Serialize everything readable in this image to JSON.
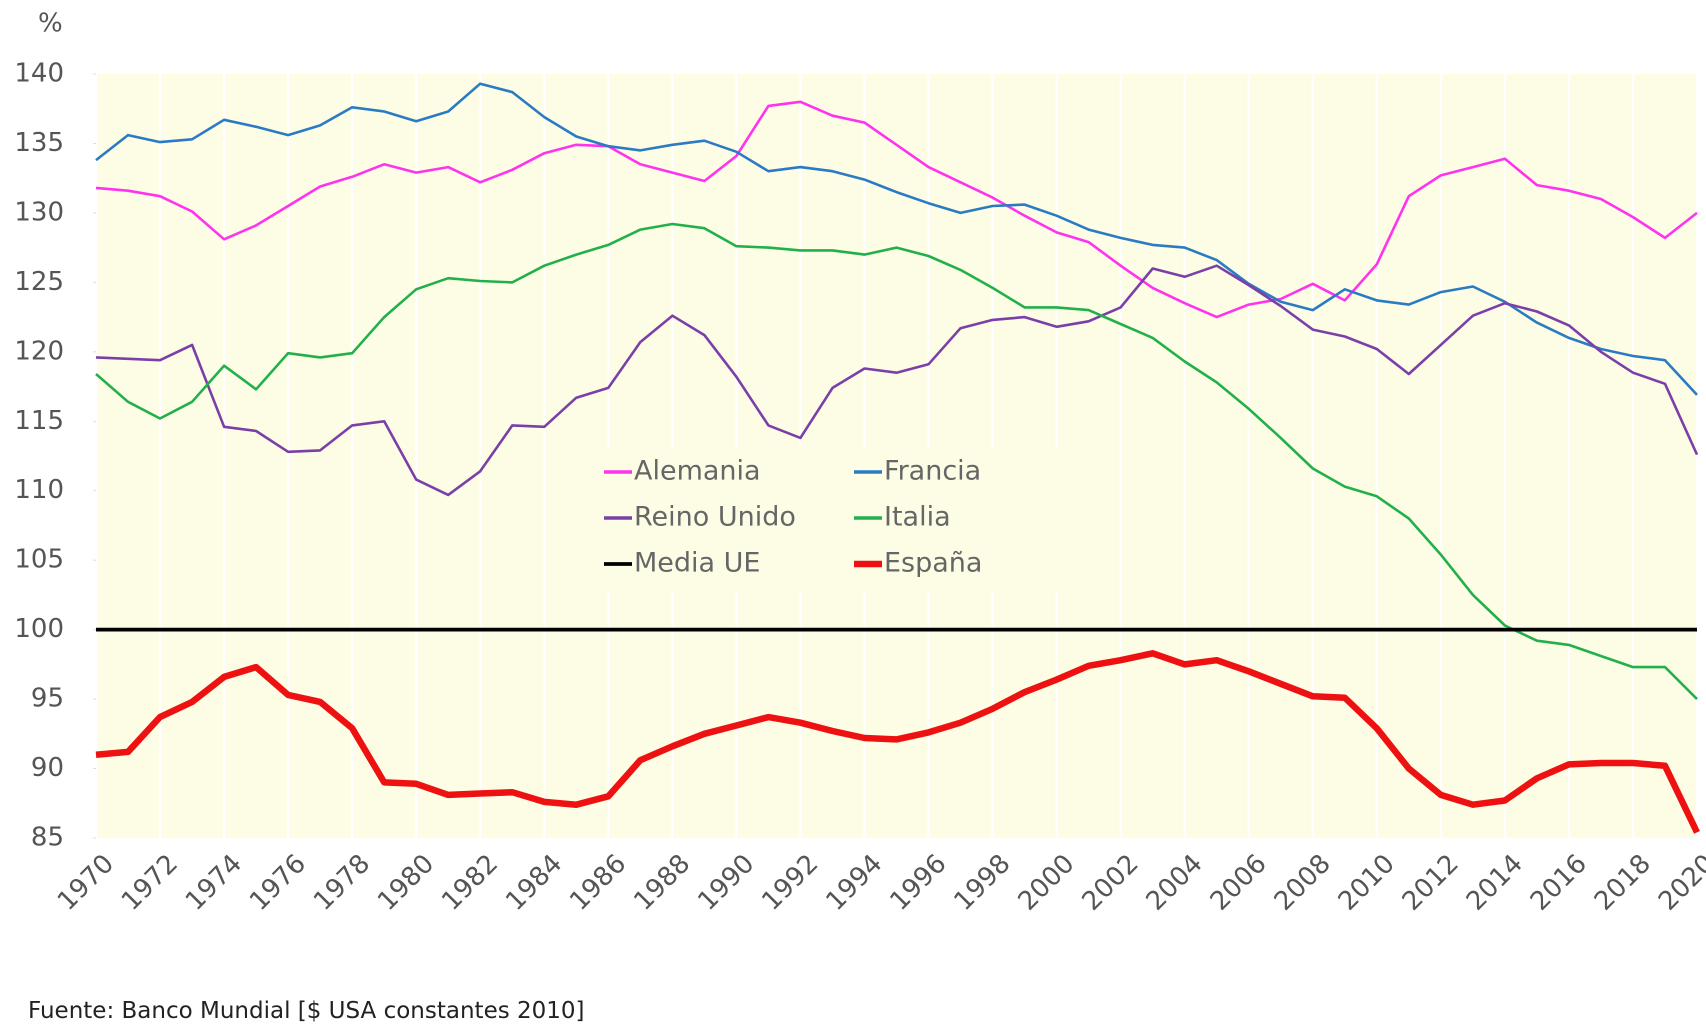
{
  "chart_data": {
    "type": "line",
    "y_label": "%",
    "source": "Fuente: Banco Mundial [$ USA constantes 2010]",
    "x": [
      1970,
      1971,
      1972,
      1973,
      1974,
      1975,
      1976,
      1977,
      1978,
      1979,
      1980,
      1981,
      1982,
      1983,
      1984,
      1985,
      1986,
      1987,
      1988,
      1989,
      1990,
      1991,
      1992,
      1993,
      1994,
      1995,
      1996,
      1997,
      1998,
      1999,
      2000,
      2001,
      2002,
      2003,
      2004,
      2005,
      2006,
      2007,
      2008,
      2009,
      2010,
      2011,
      2012,
      2013,
      2014,
      2015,
      2016,
      2017,
      2018,
      2019,
      2020
    ],
    "xlim": [
      1970,
      2020
    ],
    "xticks": [
      1970,
      1972,
      1974,
      1976,
      1978,
      1980,
      1982,
      1984,
      1986,
      1988,
      1990,
      1992,
      1994,
      1996,
      1998,
      2000,
      2002,
      2004,
      2006,
      2008,
      2010,
      2012,
      2014,
      2016,
      2018,
      2020
    ],
    "ylim": [
      85,
      140
    ],
    "yticks": [
      85,
      90,
      95,
      100,
      105,
      110,
      115,
      120,
      125,
      130,
      135,
      140
    ],
    "grid": true,
    "legend": "center",
    "series": [
      {
        "name": "Alemania",
        "color": "#ff33ee",
        "values": [
          131.8,
          131.6,
          131.2,
          130.1,
          128.1,
          129.1,
          130.5,
          131.9,
          132.6,
          133.5,
          132.9,
          133.3,
          132.2,
          133.1,
          134.3,
          134.9,
          134.8,
          133.5,
          132.9,
          132.3,
          134.1,
          137.7,
          138.0,
          137.0,
          136.5,
          134.9,
          133.3,
          132.2,
          131.1,
          129.8,
          128.6,
          127.9,
          126.2,
          124.6,
          123.5,
          122.5,
          123.4,
          123.8,
          124.9,
          123.7,
          126.3,
          131.2,
          132.7,
          133.3,
          133.9,
          132.0,
          131.6,
          131.0,
          129.7,
          128.2,
          130.0
        ]
      },
      {
        "name": "Francia",
        "color": "#2b7bc4",
        "values": [
          133.8,
          135.6,
          135.1,
          135.3,
          136.7,
          136.2,
          135.6,
          136.3,
          137.6,
          137.3,
          136.6,
          137.3,
          139.3,
          138.7,
          136.9,
          135.5,
          134.8,
          134.5,
          134.9,
          135.2,
          134.4,
          133.0,
          133.3,
          133.0,
          132.4,
          131.5,
          130.7,
          130.0,
          130.5,
          130.6,
          129.8,
          128.8,
          128.2,
          127.7,
          127.5,
          126.6,
          124.9,
          123.6,
          123.0,
          124.5,
          123.7,
          123.4,
          124.3,
          124.7,
          123.6,
          122.1,
          121.0,
          120.2,
          119.7,
          119.4,
          116.9
        ]
      },
      {
        "name": "Reino Unido",
        "color": "#7b3fa8",
        "values": [
          119.6,
          119.5,
          119.4,
          120.5,
          114.6,
          114.3,
          112.8,
          112.9,
          114.7,
          115.0,
          110.8,
          109.7,
          111.4,
          114.7,
          114.6,
          116.7,
          117.4,
          120.7,
          122.6,
          121.2,
          118.2,
          114.7,
          113.8,
          117.4,
          118.8,
          118.5,
          119.1,
          121.7,
          122.3,
          122.5,
          121.8,
          122.2,
          123.2,
          126.0,
          125.4,
          126.2,
          124.8,
          123.3,
          121.6,
          121.1,
          120.2,
          118.4,
          120.5,
          122.6,
          123.5,
          122.9,
          121.9,
          120.0,
          118.5,
          117.7,
          112.6
        ]
      },
      {
        "name": "Italia",
        "color": "#22b04b",
        "values": [
          118.4,
          116.4,
          115.2,
          116.4,
          119.0,
          117.3,
          119.9,
          119.6,
          119.9,
          122.5,
          124.5,
          125.3,
          125.1,
          125.0,
          126.2,
          127.0,
          127.7,
          128.8,
          129.2,
          128.9,
          127.6,
          127.5,
          127.3,
          127.3,
          127.0,
          127.5,
          126.9,
          125.9,
          124.6,
          123.2,
          123.2,
          123.0,
          122.0,
          121.0,
          119.3,
          117.8,
          115.9,
          113.8,
          111.6,
          110.3,
          109.6,
          108.0,
          105.4,
          102.5,
          100.3,
          99.2,
          98.9,
          98.1,
          97.3,
          97.3,
          95.0
        ]
      },
      {
        "name": "Media UE",
        "color": "#000000",
        "values": [
          100,
          100,
          100,
          100,
          100,
          100,
          100,
          100,
          100,
          100,
          100,
          100,
          100,
          100,
          100,
          100,
          100,
          100,
          100,
          100,
          100,
          100,
          100,
          100,
          100,
          100,
          100,
          100,
          100,
          100,
          100,
          100,
          100,
          100,
          100,
          100,
          100,
          100,
          100,
          100,
          100,
          100,
          100,
          100,
          100,
          100,
          100,
          100,
          100,
          100,
          100
        ]
      },
      {
        "name": "España",
        "color": "#ee1111",
        "values": [
          91.0,
          91.2,
          93.7,
          94.8,
          96.6,
          97.3,
          95.3,
          94.8,
          92.9,
          89.0,
          88.9,
          88.1,
          88.2,
          88.3,
          87.6,
          87.4,
          88.0,
          90.6,
          91.6,
          92.5,
          93.1,
          93.7,
          93.3,
          92.7,
          92.2,
          92.1,
          92.6,
          93.3,
          94.3,
          95.5,
          96.4,
          97.4,
          97.8,
          98.3,
          97.5,
          97.8,
          97.0,
          96.1,
          95.2,
          95.1,
          92.9,
          90.0,
          88.1,
          87.4,
          87.7,
          89.3,
          90.3,
          90.4,
          90.4,
          90.2,
          85.4
        ]
      }
    ]
  }
}
